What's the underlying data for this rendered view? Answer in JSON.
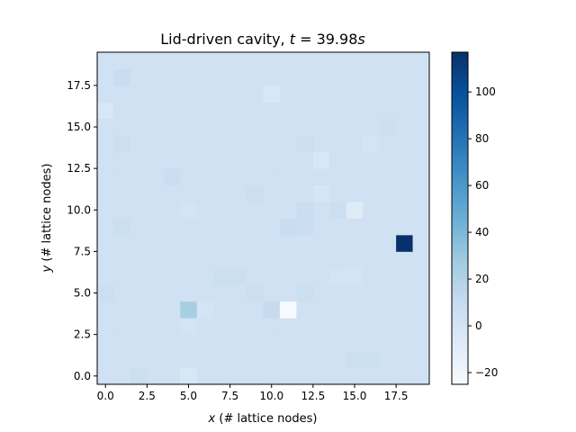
{
  "chart_data": {
    "type": "heatmap",
    "title_prefix": "Lid-driven cavity, ",
    "title_var": "t",
    "title_eq": " = ",
    "title_value": "39.98",
    "title_unit": "s",
    "xlabel_var": "x",
    "xlabel_rest": " (# lattice nodes)",
    "ylabel_var": "y",
    "ylabel_rest": " (# lattice nodes)",
    "xlim": [
      -0.5,
      19.5
    ],
    "ylim": [
      -0.5,
      19.5
    ],
    "xticks": [
      {
        "value": 0.0,
        "label": "0.0"
      },
      {
        "value": 2.5,
        "label": "2.5"
      },
      {
        "value": 5.0,
        "label": "5.0"
      },
      {
        "value": 7.5,
        "label": "7.5"
      },
      {
        "value": 10.0,
        "label": "10.0"
      },
      {
        "value": 12.5,
        "label": "12.5"
      },
      {
        "value": 15.0,
        "label": "15.0"
      },
      {
        "value": 17.5,
        "label": "17.5"
      }
    ],
    "yticks": [
      {
        "value": 0.0,
        "label": "0.0"
      },
      {
        "value": 2.5,
        "label": "2.5"
      },
      {
        "value": 5.0,
        "label": "5.0"
      },
      {
        "value": 7.5,
        "label": "7.5"
      },
      {
        "value": 10.0,
        "label": "10.0"
      },
      {
        "value": 12.5,
        "label": "12.5"
      },
      {
        "value": 15.0,
        "label": "15.0"
      },
      {
        "value": 17.5,
        "label": "17.5"
      }
    ],
    "colormap": "Blues",
    "vmin": -25,
    "vmax": 117,
    "colorbar_ticks": [
      {
        "value": -20,
        "label": "−20"
      },
      {
        "value": 0,
        "label": "0"
      },
      {
        "value": 20,
        "label": "20"
      },
      {
        "value": 40,
        "label": "40"
      },
      {
        "value": 60,
        "label": "60"
      },
      {
        "value": 80,
        "label": "80"
      },
      {
        "value": 100,
        "label": "100"
      }
    ],
    "grid_shape": [
      20,
      20
    ],
    "background_value": 4,
    "cells": [
      {
        "x": 18,
        "y": 8,
        "value": 117
      },
      {
        "x": 5,
        "y": 4,
        "value": 24
      },
      {
        "x": 11,
        "y": 4,
        "value": -25
      },
      {
        "x": 10,
        "y": 4,
        "value": 10
      },
      {
        "x": 6,
        "y": 4,
        "value": 0
      },
      {
        "x": 15,
        "y": 10,
        "value": -8
      },
      {
        "x": 13,
        "y": 13,
        "value": -3
      },
      {
        "x": 13,
        "y": 11,
        "value": -2
      },
      {
        "x": 10,
        "y": 17,
        "value": -3
      },
      {
        "x": 0,
        "y": 16,
        "value": -3
      },
      {
        "x": 1,
        "y": 18,
        "value": 8
      },
      {
        "x": 5,
        "y": 0,
        "value": -3
      },
      {
        "x": 5,
        "y": 3,
        "value": 1
      },
      {
        "x": 5,
        "y": 10,
        "value": 1
      },
      {
        "x": 4,
        "y": 12,
        "value": 7
      },
      {
        "x": 3,
        "y": 10,
        "value": 2
      },
      {
        "x": 11,
        "y": 10,
        "value": 2
      },
      {
        "x": 11,
        "y": 9,
        "value": 8
      },
      {
        "x": 12,
        "y": 10,
        "value": 7
      },
      {
        "x": 12,
        "y": 9,
        "value": 7
      },
      {
        "x": 14,
        "y": 10,
        "value": 6
      },
      {
        "x": 14,
        "y": 9,
        "value": 2
      },
      {
        "x": 14,
        "y": 6,
        "value": 1
      },
      {
        "x": 15,
        "y": 6,
        "value": 0
      },
      {
        "x": 11,
        "y": 6,
        "value": 2
      },
      {
        "x": 12,
        "y": 5,
        "value": 6
      },
      {
        "x": 16,
        "y": 14,
        "value": 1
      },
      {
        "x": 17,
        "y": 15,
        "value": 6
      },
      {
        "x": 12,
        "y": 14,
        "value": 6
      },
      {
        "x": 1,
        "y": 14,
        "value": 6
      },
      {
        "x": 9,
        "y": 5,
        "value": 6
      },
      {
        "x": 8,
        "y": 6,
        "value": 6
      },
      {
        "x": 7,
        "y": 6,
        "value": 6
      },
      {
        "x": 16,
        "y": 1,
        "value": 6
      },
      {
        "x": 15,
        "y": 1,
        "value": 6
      },
      {
        "x": 2,
        "y": 0,
        "value": 6
      },
      {
        "x": 0,
        "y": 5,
        "value": 6
      },
      {
        "x": 1,
        "y": 9,
        "value": 6
      },
      {
        "x": 9,
        "y": 11,
        "value": 6
      }
    ]
  }
}
